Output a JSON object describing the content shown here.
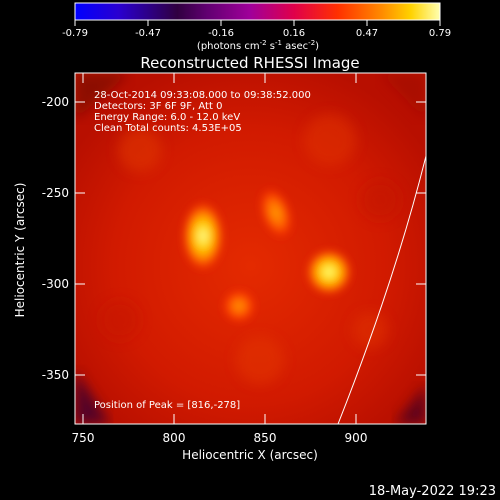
{
  "colorbar": {
    "ticks": [
      "-0.79",
      "-0.47",
      "-0.16",
      "0.16",
      "0.47",
      "0.79"
    ],
    "units_text": "(photons cm",
    "units_exp1": "-2",
    "units_mid1": " s",
    "units_exp2": "-1",
    "units_mid2": " asec",
    "units_exp3": "-2",
    "units_end": ")"
  },
  "image": {
    "title": "Reconstructed RHESSI Image",
    "info_lines": [
      "28-Oct-2014 09:33:08.000 to 09:38:52.000",
      "Detectors: 3F 6F 9F, Att 0",
      "Energy Range: 6.0 - 12.0 keV",
      "Clean    Total counts: 4.53E+05"
    ],
    "peak_text": "Position of Peak = [816,-278]",
    "xlabel": "Heliocentric X (arcsec)",
    "ylabel": "Heliocentric Y (arcsec)",
    "x_ticks": [
      "750",
      "800",
      "850",
      "900"
    ],
    "y_ticks": [
      "-200",
      "-250",
      "-300",
      "-350"
    ],
    "timestamp": "18-May-2022 19:23",
    "colors": {
      "bg": "#000000",
      "field": "#d81a00",
      "hot": "#ffff66",
      "limb": "#ffffff"
    }
  }
}
